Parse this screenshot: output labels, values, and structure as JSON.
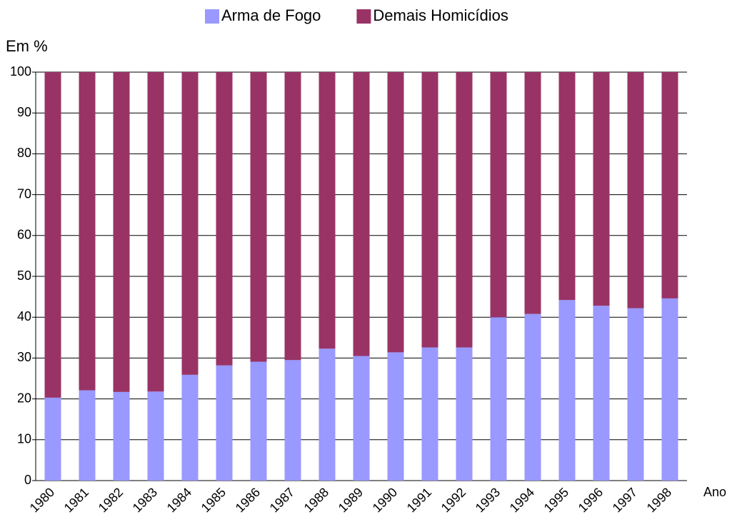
{
  "chart_data": {
    "type": "stacked_bar",
    "y_label": "Em %",
    "x_label": "Ano",
    "categories": [
      "1980",
      "1981",
      "1982",
      "1983",
      "1984",
      "1985",
      "1986",
      "1987",
      "1988",
      "1989",
      "1990",
      "1991",
      "1992",
      "1993",
      "1994",
      "1995",
      "1996",
      "1997",
      "1998"
    ],
    "series": [
      {
        "name": "Arma de Fogo",
        "color": "#9999ff",
        "values": [
          20.3,
          22.1,
          21.7,
          21.8,
          25.9,
          28.2,
          29.1,
          29.5,
          32.3,
          30.5,
          31.4,
          32.6,
          32.6,
          40.0,
          40.8,
          44.2,
          42.8,
          42.2,
          44.6
        ]
      },
      {
        "name": "Demais Homicídios",
        "color": "#993366",
        "values": [
          79.7,
          77.9,
          78.3,
          78.2,
          74.1,
          71.8,
          70.9,
          70.5,
          67.7,
          69.5,
          68.6,
          67.4,
          67.4,
          60.0,
          59.2,
          55.8,
          57.2,
          57.8,
          55.4
        ]
      }
    ],
    "ylim": [
      0,
      100
    ],
    "yticks": [
      0,
      10,
      20,
      30,
      40,
      50,
      60,
      70,
      80,
      90,
      100
    ],
    "grid": true,
    "legend": "top"
  }
}
